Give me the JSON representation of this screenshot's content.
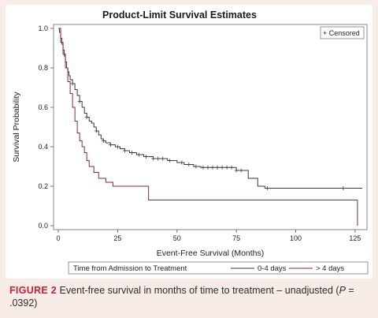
{
  "chart_data": {
    "type": "line",
    "title": "Product-Limit Survival Estimates",
    "xlabel": "Event-Free Survival (Months)",
    "ylabel": "Survival Probability",
    "xlim": [
      -2,
      130
    ],
    "ylim": [
      -0.02,
      1.02
    ],
    "xticks": [
      0,
      25,
      50,
      75,
      100,
      125
    ],
    "yticks": [
      0.0,
      0.2,
      0.4,
      0.6,
      0.8,
      1.0
    ],
    "ytick_labels": [
      "0.0",
      "0.2",
      "0.4",
      "0.6",
      "0.8",
      "1.0"
    ],
    "censored_legend": "+ Censored",
    "legend_title": "Time from Admission to Treatment",
    "series": [
      {
        "name": "0-4 days",
        "color": "#3a3a4a",
        "steps": [
          [
            0,
            1.0
          ],
          [
            0.5,
            0.98
          ],
          [
            1,
            0.95
          ],
          [
            1.5,
            0.92
          ],
          [
            2,
            0.89
          ],
          [
            2.5,
            0.86
          ],
          [
            3,
            0.83
          ],
          [
            3.5,
            0.8
          ],
          [
            4,
            0.78
          ],
          [
            4.5,
            0.76
          ],
          [
            5,
            0.74
          ],
          [
            6,
            0.72
          ],
          [
            7,
            0.69
          ],
          [
            8,
            0.66
          ],
          [
            9,
            0.63
          ],
          [
            10,
            0.6
          ],
          [
            11,
            0.57
          ],
          [
            12,
            0.55
          ],
          [
            13,
            0.53
          ],
          [
            14,
            0.52
          ],
          [
            15,
            0.5
          ],
          [
            16,
            0.48
          ],
          [
            17,
            0.46
          ],
          [
            18,
            0.44
          ],
          [
            19,
            0.43
          ],
          [
            20,
            0.42
          ],
          [
            22,
            0.41
          ],
          [
            24,
            0.4
          ],
          [
            26,
            0.39
          ],
          [
            28,
            0.38
          ],
          [
            30,
            0.37
          ],
          [
            33,
            0.36
          ],
          [
            36,
            0.35
          ],
          [
            40,
            0.34
          ],
          [
            46,
            0.33
          ],
          [
            50,
            0.32
          ],
          [
            53,
            0.31
          ],
          [
            57,
            0.3
          ],
          [
            60,
            0.295
          ],
          [
            75,
            0.28
          ],
          [
            80,
            0.24
          ],
          [
            84,
            0.2
          ],
          [
            87,
            0.19
          ],
          [
            128,
            0.19
          ]
        ],
        "censored_x": [
          6,
          9,
          12,
          16,
          19,
          22,
          25,
          28,
          31,
          34,
          37,
          40,
          42,
          44,
          47,
          52,
          55,
          58,
          61,
          63,
          65,
          67,
          69,
          71,
          73,
          75,
          77,
          88,
          120
        ]
      },
      {
        "name": "> 4 days",
        "color": "#8a2a3a",
        "steps": [
          [
            0,
            1.0
          ],
          [
            1,
            0.93
          ],
          [
            2,
            0.87
          ],
          [
            3,
            0.8
          ],
          [
            4,
            0.73
          ],
          [
            5,
            0.67
          ],
          [
            6,
            0.6
          ],
          [
            7,
            0.53
          ],
          [
            8,
            0.47
          ],
          [
            9,
            0.43
          ],
          [
            10,
            0.4
          ],
          [
            11,
            0.37
          ],
          [
            12,
            0.33
          ],
          [
            13,
            0.3
          ],
          [
            15,
            0.27
          ],
          [
            17,
            0.24
          ],
          [
            20,
            0.22
          ],
          [
            23,
            0.2
          ],
          [
            38,
            0.13
          ],
          [
            126,
            0.13
          ],
          [
            126,
            0.0
          ]
        ],
        "censored_x": []
      }
    ]
  },
  "caption": {
    "figure_label": "FIGURE 2",
    "text": " Event-free survival in months of time to treatment – unadjusted (",
    "p_symbol": "P",
    "p_value": " = .0392)"
  }
}
